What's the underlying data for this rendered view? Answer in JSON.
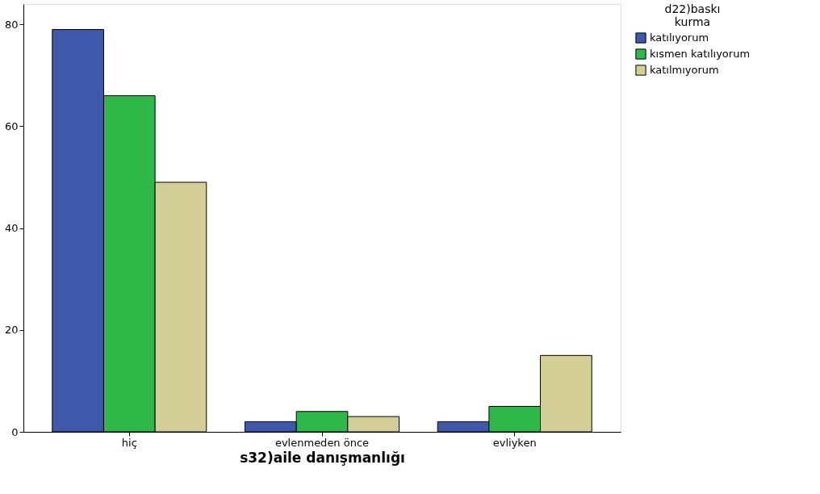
{
  "chart_data": {
    "type": "bar",
    "xlabel": "s32)aile danışmanlığı",
    "legend_title": "d22)baskı kurma",
    "categories": [
      "hiç",
      "evlenmeden önce",
      "evliyken"
    ],
    "series": [
      {
        "name": "katılıyorum",
        "color": "#3e58ac",
        "values": [
          79,
          2,
          2
        ]
      },
      {
        "name": "kısmen katılıyorum",
        "color": "#2eb848",
        "values": [
          66,
          4,
          5
        ]
      },
      {
        "name": "katılmıyorum",
        "color": "#d4cf97",
        "values": [
          49,
          3,
          15
        ]
      }
    ],
    "ylim": [
      0,
      84
    ],
    "yticks": [
      0,
      20,
      40,
      60,
      80
    ],
    "grid": false,
    "legend": "top right"
  }
}
